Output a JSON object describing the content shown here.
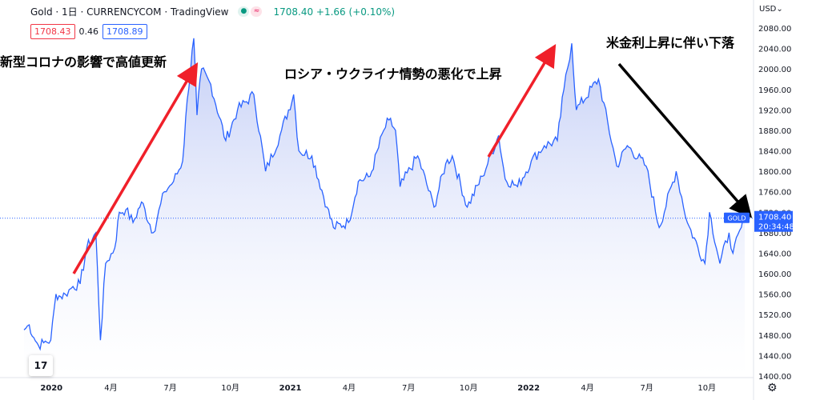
{
  "header": {
    "symbol": "Gold · 1日 · CURRENCYCOM · TradingView",
    "price_change": "1708.40 +1.66 (+0.10%)",
    "dot_icon": "dot-icon",
    "wave_icon": "wave-icon"
  },
  "ohlc": {
    "bid": "1708.43",
    "spread": "0.46",
    "ask": "1708.89"
  },
  "currency": "USD",
  "annotations": {
    "a1": "新型コロナの影響で高値更新",
    "a2": "ロシア・ウクライナ情勢の悪化で上昇",
    "a3": "米金利上昇に伴い下落"
  },
  "price_tag": {
    "symbol": "GOLD",
    "price": "1708.40",
    "time": "20:34:48"
  },
  "colors": {
    "line": "#2962ff",
    "area_top": "#bcc8f5",
    "area_bottom": "#ffffff",
    "arrow_red": "#f0202a",
    "arrow_black": "#000000",
    "tag": "#2962ff"
  },
  "chart_data": {
    "type": "area",
    "x_ticks": [
      "2020",
      "4月",
      "7月",
      "10月",
      "2021",
      "4月",
      "7月",
      "10月",
      "2022",
      "4月",
      "7月",
      "10月"
    ],
    "y_ticks": [
      "2080.00",
      "2040.00",
      "2000.00",
      "1960.00",
      "1920.00",
      "1880.00",
      "1840.00",
      "1800.00",
      "1760.00",
      "1720.00",
      "1680.00",
      "1640.00",
      "1600.00",
      "1560.00",
      "1520.00",
      "1480.00",
      "1440.00",
      "1400.00"
    ],
    "ylim": [
      1400,
      2080
    ],
    "xlim": [
      "2019-11-20",
      "2022-11-28"
    ],
    "series": [
      {
        "points": [
          [
            "2019-11-20",
            1490
          ],
          [
            "2019-11-28",
            1500
          ],
          [
            "2019-12-05",
            1475
          ],
          [
            "2019-12-12",
            1460
          ],
          [
            "2019-12-20",
            1465
          ],
          [
            "2019-12-31",
            1470
          ],
          [
            "2020-01-08",
            1560
          ],
          [
            "2020-01-15",
            1555
          ],
          [
            "2020-01-22",
            1560
          ],
          [
            "2020-02-03",
            1575
          ],
          [
            "2020-02-14",
            1580
          ],
          [
            "2020-02-24",
            1650
          ],
          [
            "2020-03-09",
            1680
          ],
          [
            "2020-03-16",
            1470
          ],
          [
            "2020-03-24",
            1620
          ],
          [
            "2020-04-07",
            1650
          ],
          [
            "2020-04-14",
            1720
          ],
          [
            "2020-04-24",
            1725
          ],
          [
            "2020-05-05",
            1700
          ],
          [
            "2020-05-18",
            1740
          ],
          [
            "2020-06-05",
            1680
          ],
          [
            "2020-06-22",
            1760
          ],
          [
            "2020-07-06",
            1780
          ],
          [
            "2020-07-20",
            1820
          ],
          [
            "2020-07-27",
            1940
          ],
          [
            "2020-08-06",
            2060
          ],
          [
            "2020-08-11",
            1910
          ],
          [
            "2020-08-18",
            2000
          ],
          [
            "2020-09-01",
            1970
          ],
          [
            "2020-09-24",
            1860
          ],
          [
            "2020-10-12",
            1920
          ],
          [
            "2020-11-06",
            1950
          ],
          [
            "2020-11-24",
            1800
          ],
          [
            "2020-12-16",
            1870
          ],
          [
            "2021-01-06",
            1950
          ],
          [
            "2021-01-14",
            1840
          ],
          [
            "2021-02-03",
            1830
          ],
          [
            "2021-02-26",
            1730
          ],
          [
            "2021-03-08",
            1690
          ],
          [
            "2021-03-31",
            1700
          ],
          [
            "2021-04-15",
            1780
          ],
          [
            "2021-05-03",
            1790
          ],
          [
            "2021-05-24",
            1880
          ],
          [
            "2021-06-01",
            1900
          ],
          [
            "2021-06-11",
            1880
          ],
          [
            "2021-06-18",
            1770
          ],
          [
            "2021-07-15",
            1830
          ],
          [
            "2021-08-09",
            1730
          ],
          [
            "2021-08-27",
            1815
          ],
          [
            "2021-09-06",
            1830
          ],
          [
            "2021-09-29",
            1730
          ],
          [
            "2021-10-22",
            1790
          ],
          [
            "2021-11-16",
            1870
          ],
          [
            "2021-11-26",
            1785
          ],
          [
            "2021-12-15",
            1770
          ],
          [
            "2022-01-05",
            1820
          ],
          [
            "2022-01-25",
            1850
          ],
          [
            "2022-02-14",
            1860
          ],
          [
            "2022-02-24",
            1960
          ],
          [
            "2022-03-08",
            2050
          ],
          [
            "2022-03-15",
            1920
          ],
          [
            "2022-04-18",
            1980
          ],
          [
            "2022-05-16",
            1810
          ],
          [
            "2022-06-01",
            1850
          ],
          [
            "2022-06-30",
            1810
          ],
          [
            "2022-07-20",
            1690
          ],
          [
            "2022-08-15",
            1800
          ],
          [
            "2022-09-01",
            1700
          ],
          [
            "2022-09-28",
            1620
          ],
          [
            "2022-10-05",
            1720
          ],
          [
            "2022-10-21",
            1620
          ],
          [
            "2022-11-04",
            1680
          ],
          [
            "2022-11-10",
            1640
          ],
          [
            "2022-11-28",
            1708.4
          ]
        ]
      }
    ]
  }
}
